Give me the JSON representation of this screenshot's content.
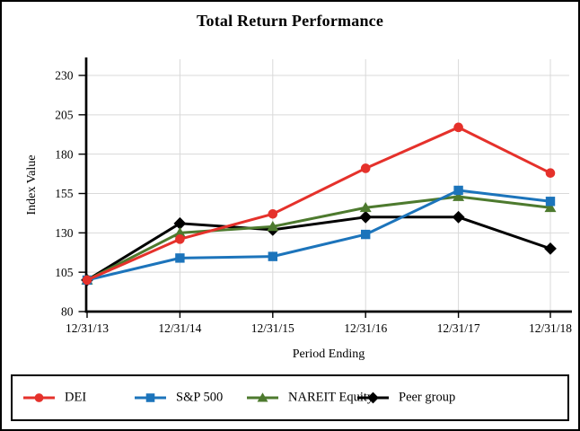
{
  "page_title": "Total Return Performance",
  "chart_data": {
    "type": "line",
    "title": "Total Return Performance",
    "xlabel": "Period Ending",
    "ylabel": "Index Value",
    "categories": [
      "12/31/13",
      "12/31/14",
      "12/31/15",
      "12/31/16",
      "12/31/17",
      "12/31/18"
    ],
    "series": [
      {
        "name": "DEI",
        "marker": "circle",
        "color": "#e5312b",
        "values": [
          100,
          126,
          142,
          171,
          197,
          168
        ]
      },
      {
        "name": "S&P 500",
        "marker": "square",
        "color": "#1c74bb",
        "values": [
          100,
          114,
          115,
          129,
          157,
          150
        ]
      },
      {
        "name": "NAREIT Equity",
        "marker": "triangle",
        "color": "#4d7a2e",
        "values": [
          100,
          130,
          134,
          146,
          153,
          146
        ]
      },
      {
        "name": "Peer group",
        "marker": "diamond",
        "color": "#000000",
        "values": [
          100,
          136,
          132,
          140,
          140,
          120
        ]
      }
    ],
    "ylim": [
      80,
      230
    ],
    "yticks": [
      80,
      105,
      130,
      155,
      180,
      205,
      230
    ],
    "grid": true,
    "gridline_color": "#d9d9d9",
    "axis_color": "#000000",
    "legend_position": "bottom-box"
  }
}
